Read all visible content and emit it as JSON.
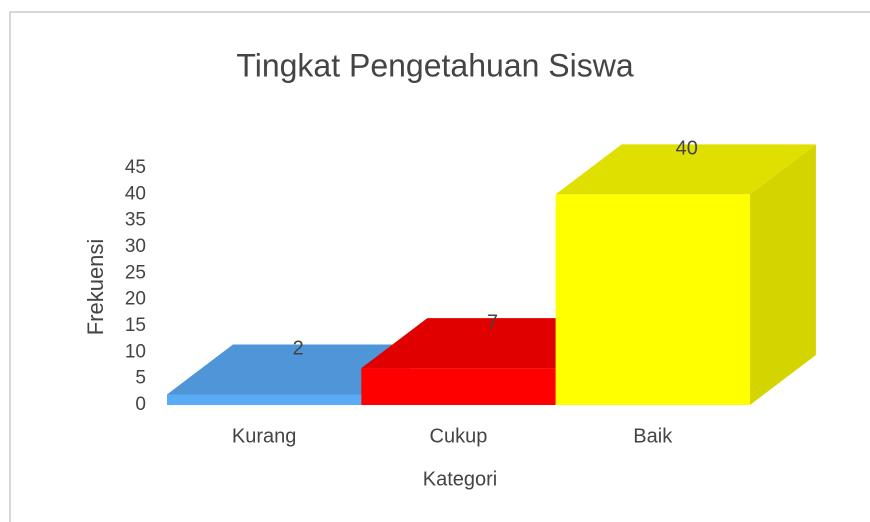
{
  "chart_data": {
    "type": "bar3d",
    "title": "Tingkat Pengetahuan Siswa",
    "x_label": "Kategori",
    "y_label": "Frekuensi",
    "categories": [
      "Kurang",
      "Cukup",
      "Baik"
    ],
    "values": [
      2,
      7,
      40
    ],
    "colors": [
      "#5aabf5",
      "#ff0000",
      "#ffff00"
    ],
    "ylim": [
      0,
      45
    ],
    "yticks": [
      0,
      5,
      10,
      15,
      20,
      25,
      30,
      35,
      40,
      45
    ]
  }
}
